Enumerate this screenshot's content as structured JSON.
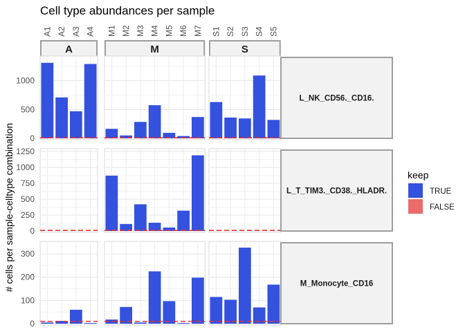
{
  "chart_data": {
    "type": "bar",
    "title": "Cell type abundances per sample",
    "ylabel": "# cells per sample-celltype combination",
    "xlabel": "",
    "grid": true,
    "legend": {
      "title": "keep",
      "placement": "right",
      "entries": [
        {
          "label": "TRUE",
          "color": "#3452DE"
        },
        {
          "label": "FALSE",
          "color": "#EB6B6B"
        }
      ]
    },
    "threshold_line_color": "#E8303A",
    "column_groups": [
      {
        "name": "A",
        "samples": [
          "A1",
          "A2",
          "A3",
          "A4"
        ]
      },
      {
        "name": "M",
        "samples": [
          "M1",
          "M2",
          "M3",
          "M4",
          "M5",
          "M6",
          "M7"
        ]
      },
      {
        "name": "S",
        "samples": [
          "S1",
          "S2",
          "S3",
          "S4",
          "S5"
        ]
      }
    ],
    "panels": [
      {
        "celltype": "L_NK_CD56._CD16.",
        "ylim": [
          0,
          1380
        ],
        "yticks": [
          0,
          500,
          1000
        ],
        "threshold": 10,
        "values": {
          "A": [
            1310,
            710,
            470,
            1290
          ],
          "M": [
            165,
            50,
            285,
            575,
            95,
            40,
            370
          ],
          "S": [
            630,
            360,
            345,
            1090,
            320
          ]
        }
      },
      {
        "celltype": "L_T_TIM3._CD38._HLADR.",
        "ylim": [
          0,
          1250
        ],
        "yticks": [
          0,
          250,
          500,
          750,
          1000,
          1250
        ],
        "threshold": 10,
        "values": {
          "A": [
            0,
            0,
            0,
            0
          ],
          "M": [
            870,
            110,
            420,
            130,
            55,
            320,
            1190
          ],
          "S": [
            0,
            0,
            0,
            0,
            0
          ]
        }
      },
      {
        "celltype": "M_Monocyte_CD16",
        "ylim": [
          0,
          342
        ],
        "yticks": [
          0,
          100,
          200,
          300
        ],
        "threshold": 10,
        "values": {
          "A": [
            5,
            12,
            60,
            3
          ],
          "M": [
            18,
            72,
            5,
            225,
            97,
            3,
            198
          ],
          "S": [
            115,
            103,
            327,
            70,
            168
          ]
        }
      }
    ]
  }
}
